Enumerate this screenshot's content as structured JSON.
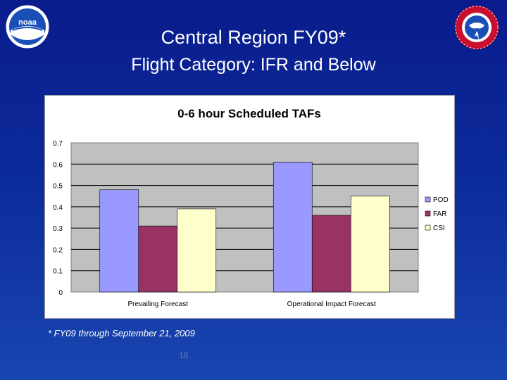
{
  "slide": {
    "title_line1": "Central Region FY09*",
    "title_line2": "Flight Category: IFR and Below",
    "footnote": "* FY09 through September 21, 2009",
    "page_number": "18",
    "logos": {
      "left": {
        "name": "noaa-logo",
        "text": "noaa"
      },
      "right": {
        "name": "nws-logo",
        "text": ""
      }
    }
  },
  "chart_data": {
    "type": "bar",
    "title": "0-6 hour Scheduled TAFs",
    "xlabel": "",
    "ylabel": "",
    "categories": [
      "Prevailing Forecast",
      "Operational Impact Forecast"
    ],
    "series": [
      {
        "name": "POD",
        "values": [
          0.48,
          0.61
        ],
        "color": "#9999ff"
      },
      {
        "name": "FAR",
        "values": [
          0.31,
          0.36
        ],
        "color": "#993366"
      },
      {
        "name": "CSI",
        "values": [
          0.39,
          0.45
        ],
        "color": "#ffffcc"
      }
    ],
    "ylim": [
      0,
      0.7
    ],
    "yticks": [
      "0",
      "0.1",
      "0.2",
      "0.3",
      "0.4",
      "0.5",
      "0.6",
      "0.7"
    ],
    "grid": true,
    "legend_position": "right",
    "plot_background": "#c0c0c0"
  }
}
